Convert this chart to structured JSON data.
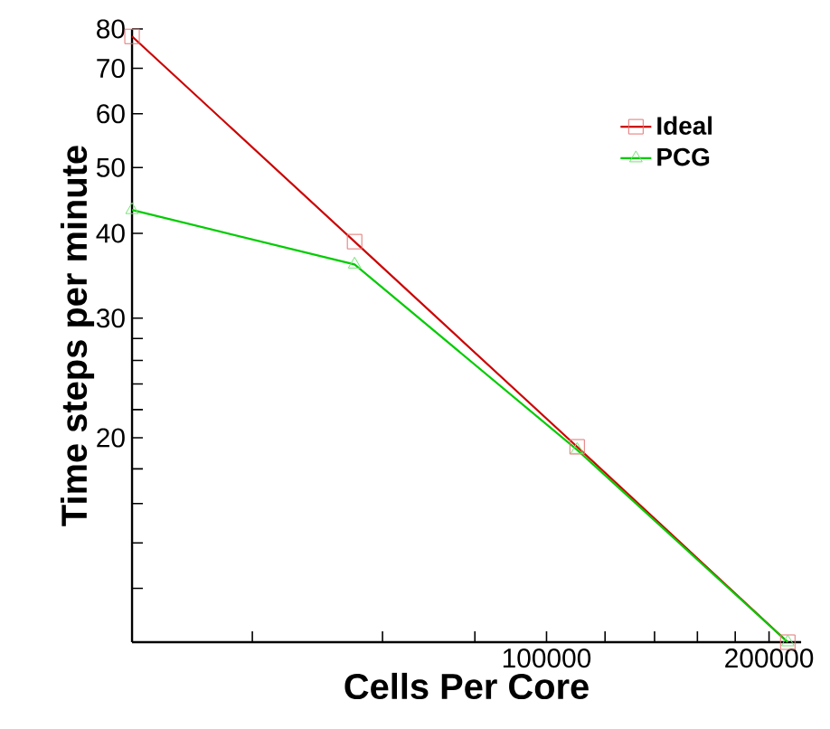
{
  "chart_data": {
    "type": "line",
    "xlabel": "Cells Per Core",
    "ylabel": "Time steps per minute",
    "x": [
      27500,
      55000,
      110000,
      212000
    ],
    "series": [
      {
        "name": "Ideal",
        "color": "#cc0000",
        "marker": "square",
        "values": [
          78,
          38.9,
          19.4,
          10
        ]
      },
      {
        "name": "PCG",
        "color": "#00cc00",
        "marker": "triangle",
        "values": [
          43.3,
          36,
          19.2,
          10
        ]
      }
    ],
    "log": "xy",
    "xlim": [
      27500,
      221000
    ],
    "ylim": [
      10,
      80
    ],
    "xticks": [
      {
        "value": 40000,
        "label": null
      },
      {
        "value": 60000,
        "label": null
      },
      {
        "value": 80000,
        "label": null
      },
      100000,
      {
        "value": 120000,
        "label": null
      },
      {
        "value": 140000,
        "label": null
      },
      {
        "value": 160000,
        "label": null
      },
      {
        "value": 180000,
        "label": null
      },
      200000
    ],
    "yticks": [
      {
        "value": 12,
        "label": null
      },
      {
        "value": 14,
        "label": null
      },
      {
        "value": 16,
        "label": null
      },
      {
        "value": 18,
        "label": null
      },
      20,
      {
        "value": 22,
        "label": null
      },
      {
        "value": 24,
        "label": null
      },
      {
        "value": 26,
        "label": null
      },
      {
        "value": 28,
        "label": null
      },
      30,
      40,
      50,
      60,
      70,
      80
    ],
    "grid": false,
    "legend": "top right",
    "line_style": "solid"
  }
}
